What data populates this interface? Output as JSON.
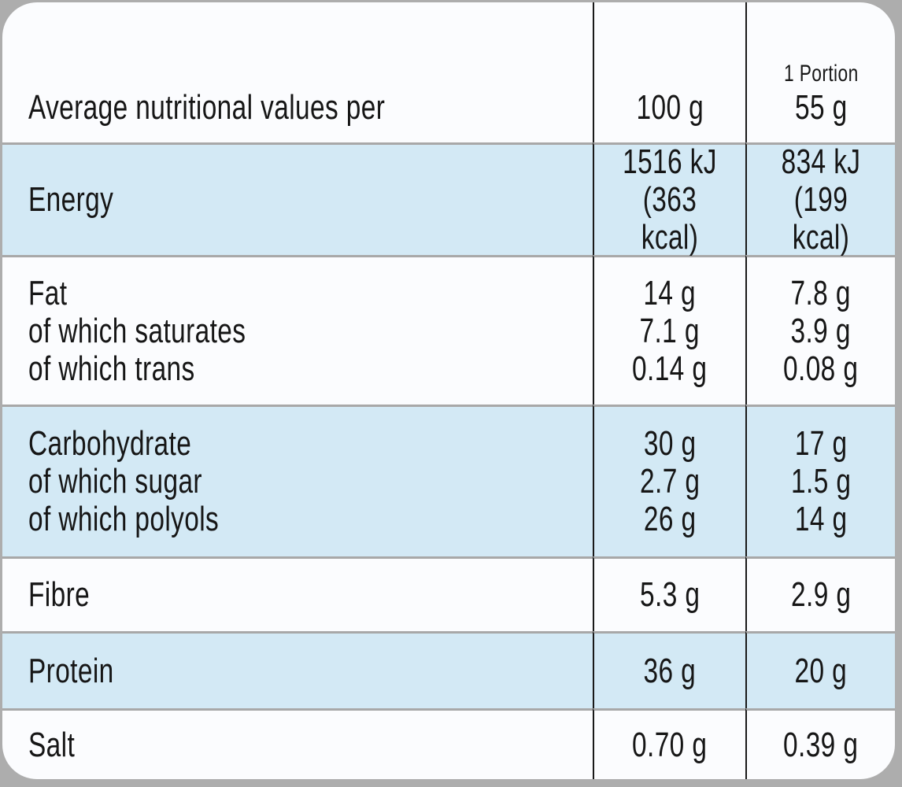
{
  "colors": {
    "page_background": "#adadad",
    "card_background": "#fbfcfe",
    "row_highlight": "#d3e9f5",
    "column_line": "#191919",
    "row_separator": "#a8a8a8",
    "text": "#161616"
  },
  "table": {
    "header": {
      "label": "Average nutritional values per",
      "col_100g": "100 g",
      "portion_label": "1 Portion",
      "portion_amount": "55 g"
    },
    "rows": [
      {
        "name": "energy",
        "label": "Energy",
        "per_100g": "1516 kJ\n(363 kcal)",
        "per_portion": "834 kJ\n(199 kcal)"
      },
      {
        "name": "fat",
        "label": "Fat\nof which saturates\nof which trans",
        "per_100g": "14 g\n7.1 g\n0.14 g",
        "per_portion": "7.8 g\n3.9 g\n0.08 g"
      },
      {
        "name": "carbohydrate",
        "label": "Carbohydrate\nof which sugar\nof which polyols",
        "per_100g": "30 g\n2.7 g\n26 g",
        "per_portion": "17 g\n1.5 g\n14 g"
      },
      {
        "name": "fibre",
        "label": "Fibre",
        "per_100g": "5.3 g",
        "per_portion": "2.9 g"
      },
      {
        "name": "protein",
        "label": "Protein",
        "per_100g": "36 g",
        "per_portion": "20 g"
      },
      {
        "name": "salt",
        "label": "Salt",
        "per_100g": "0.70 g",
        "per_portion": "0.39 g"
      }
    ]
  }
}
